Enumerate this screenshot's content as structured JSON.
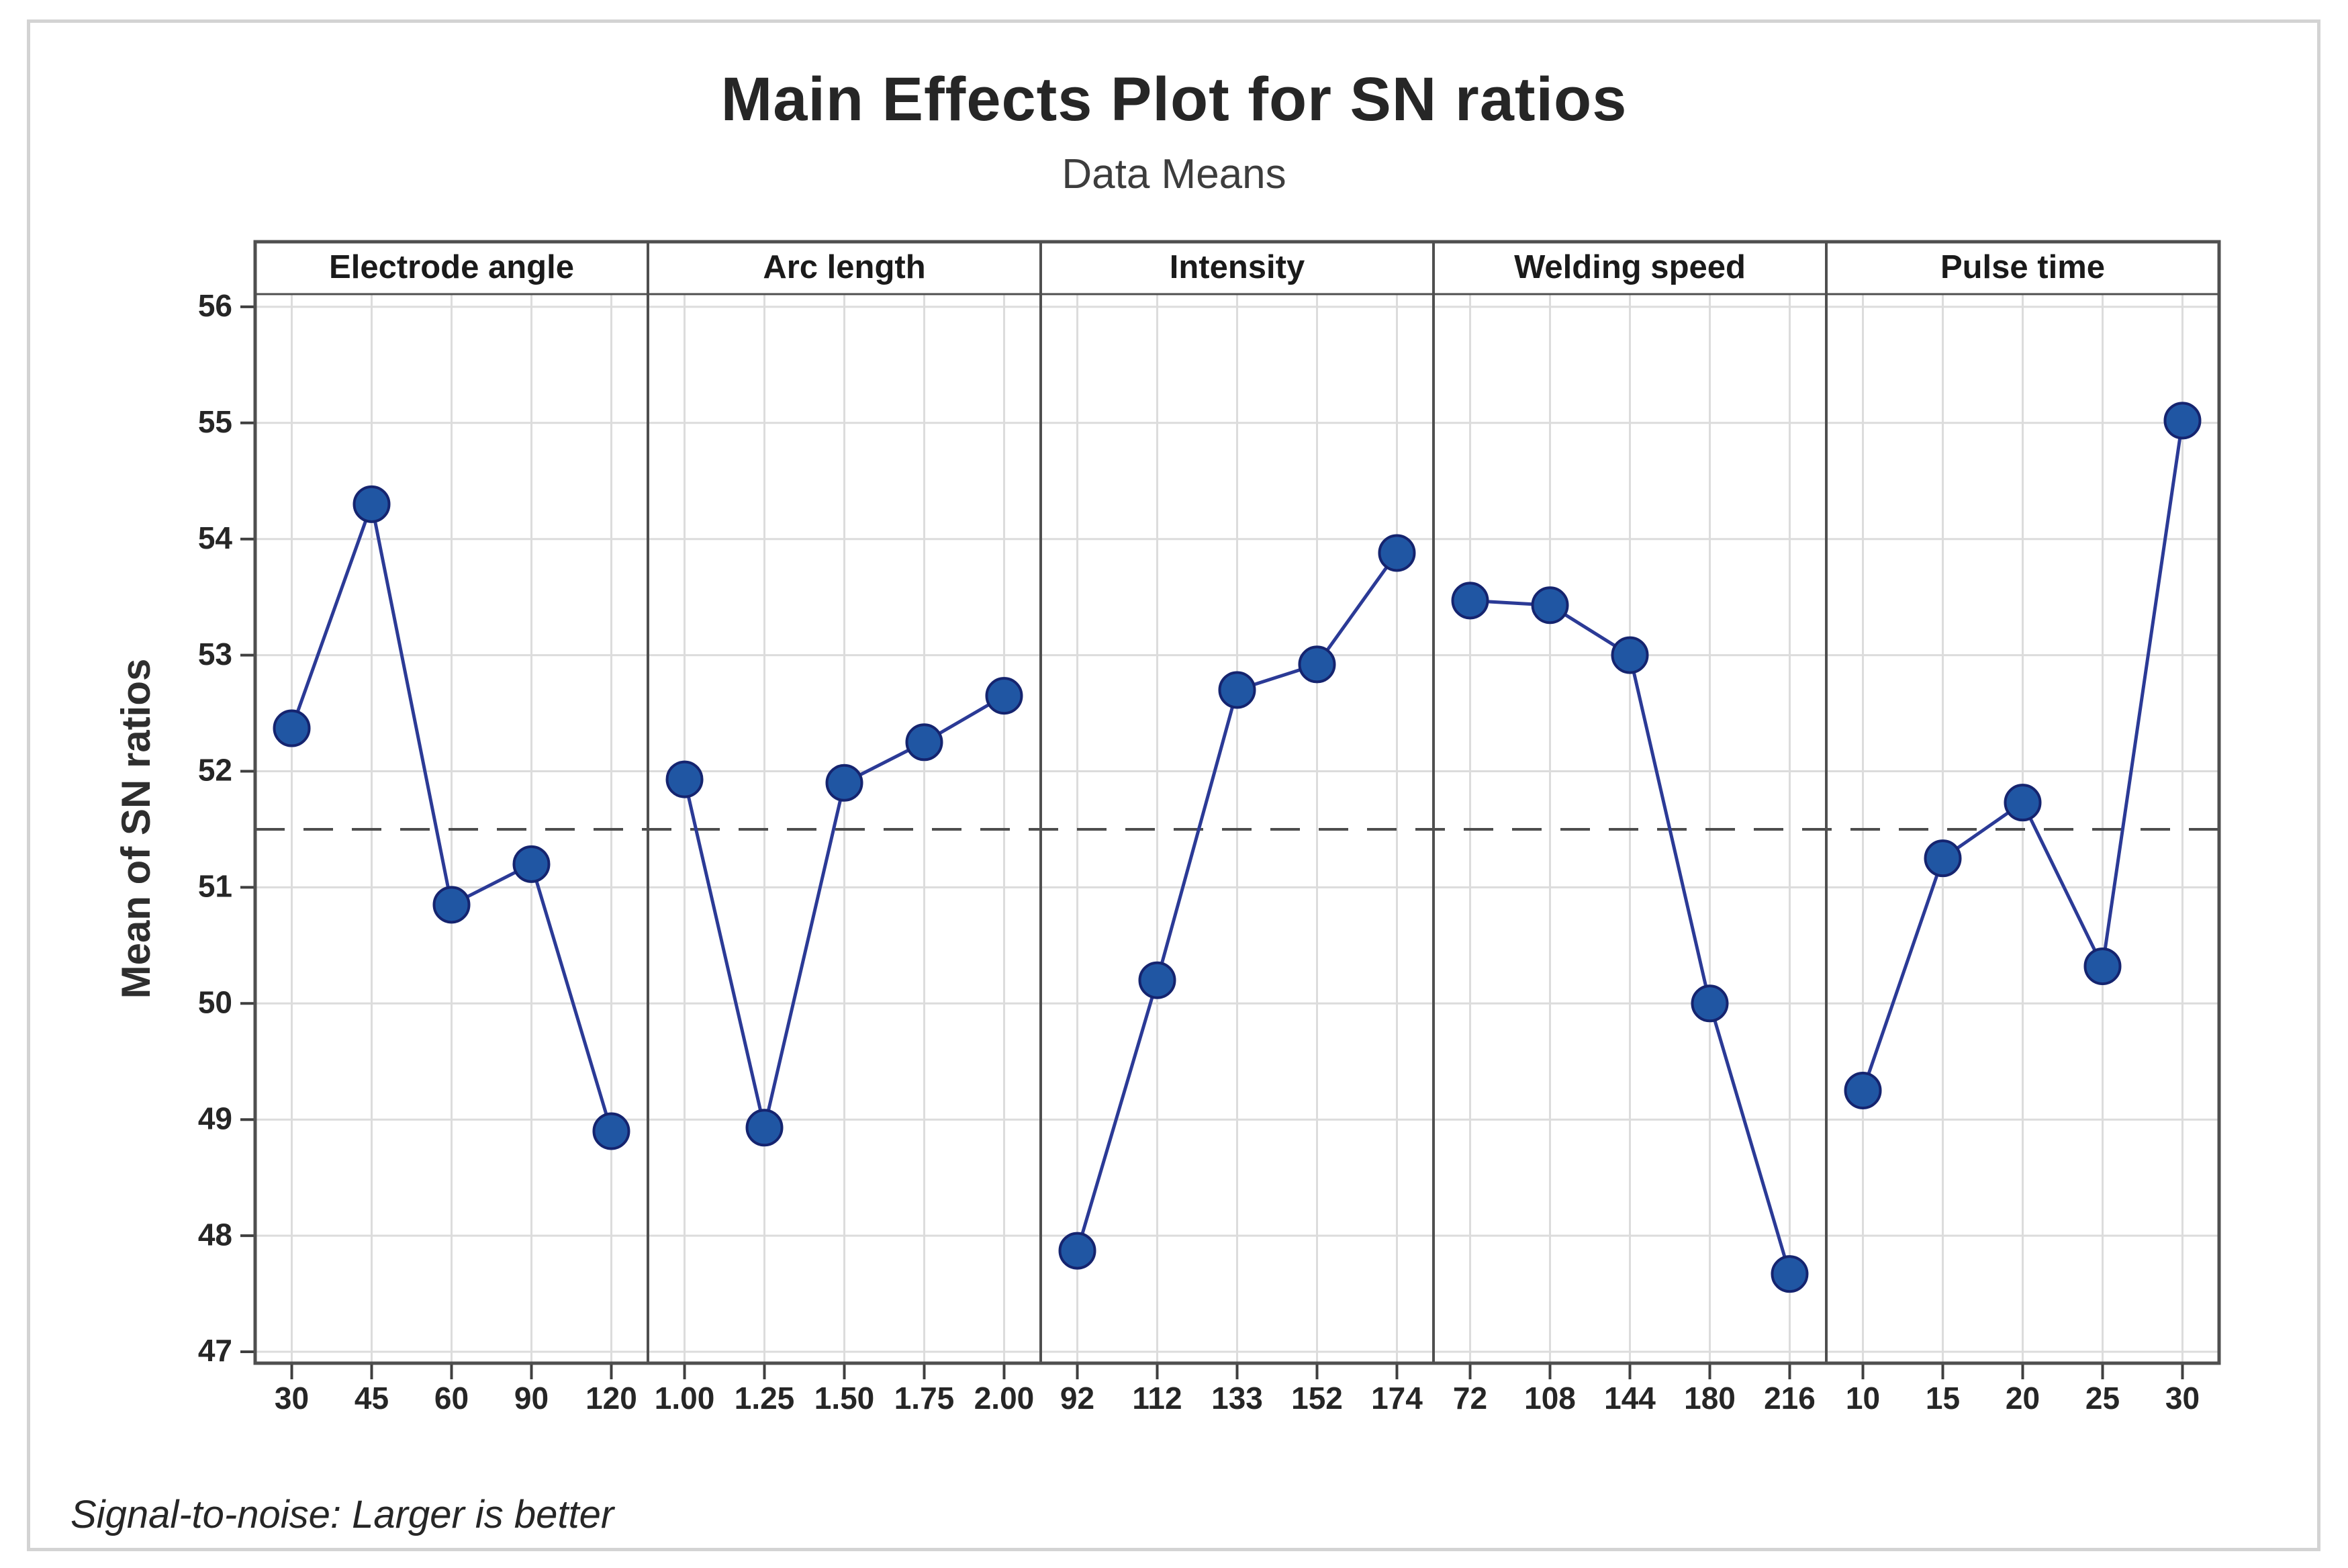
{
  "page": {
    "background": "#ffffff",
    "frame_border_color": "#d3d3d3"
  },
  "chart_data": {
    "type": "line",
    "title": "Main Effects Plot for SN ratios",
    "subtitle": "Data Means",
    "ylabel": "Mean of SN ratios",
    "footnote": "Signal-to-noise: Larger is better",
    "ylim": [
      47,
      56
    ],
    "yticks": [
      "47",
      "48",
      "49",
      "50",
      "51",
      "52",
      "53",
      "54",
      "55",
      "56"
    ],
    "reference_line": 51.5,
    "grid": true,
    "legend": "none",
    "panels": [
      {
        "label": "Electrode angle",
        "categories": [
          "30",
          "45",
          "60",
          "90",
          "120"
        ],
        "values": [
          52.37,
          54.3,
          50.85,
          51.2,
          48.9
        ]
      },
      {
        "label": "Arc length",
        "categories": [
          "1.00",
          "1.25",
          "1.50",
          "1.75",
          "2.00"
        ],
        "values": [
          51.93,
          48.93,
          51.9,
          52.25,
          52.65
        ]
      },
      {
        "label": "Intensity",
        "categories": [
          "92",
          "112",
          "133",
          "152",
          "174"
        ],
        "values": [
          47.87,
          50.2,
          52.7,
          52.92,
          53.88
        ]
      },
      {
        "label": "Welding speed",
        "categories": [
          "72",
          "108",
          "144",
          "180",
          "216"
        ],
        "values": [
          53.47,
          53.43,
          53.0,
          50.0,
          47.67
        ]
      },
      {
        "label": "Pulse time",
        "categories": [
          "10",
          "15",
          "20",
          "25",
          "30"
        ],
        "values": [
          49.25,
          51.25,
          51.73,
          50.32,
          55.02
        ]
      }
    ],
    "colors": {
      "line": "#2B3A96",
      "marker_fill": "#2056A3",
      "marker_edge": "#15246F",
      "grid": "#dcdcdc",
      "frame": "#4f4f4f",
      "tick": "#3f3f3f",
      "reference": "#4d4d4d",
      "text": "#262626"
    }
  }
}
